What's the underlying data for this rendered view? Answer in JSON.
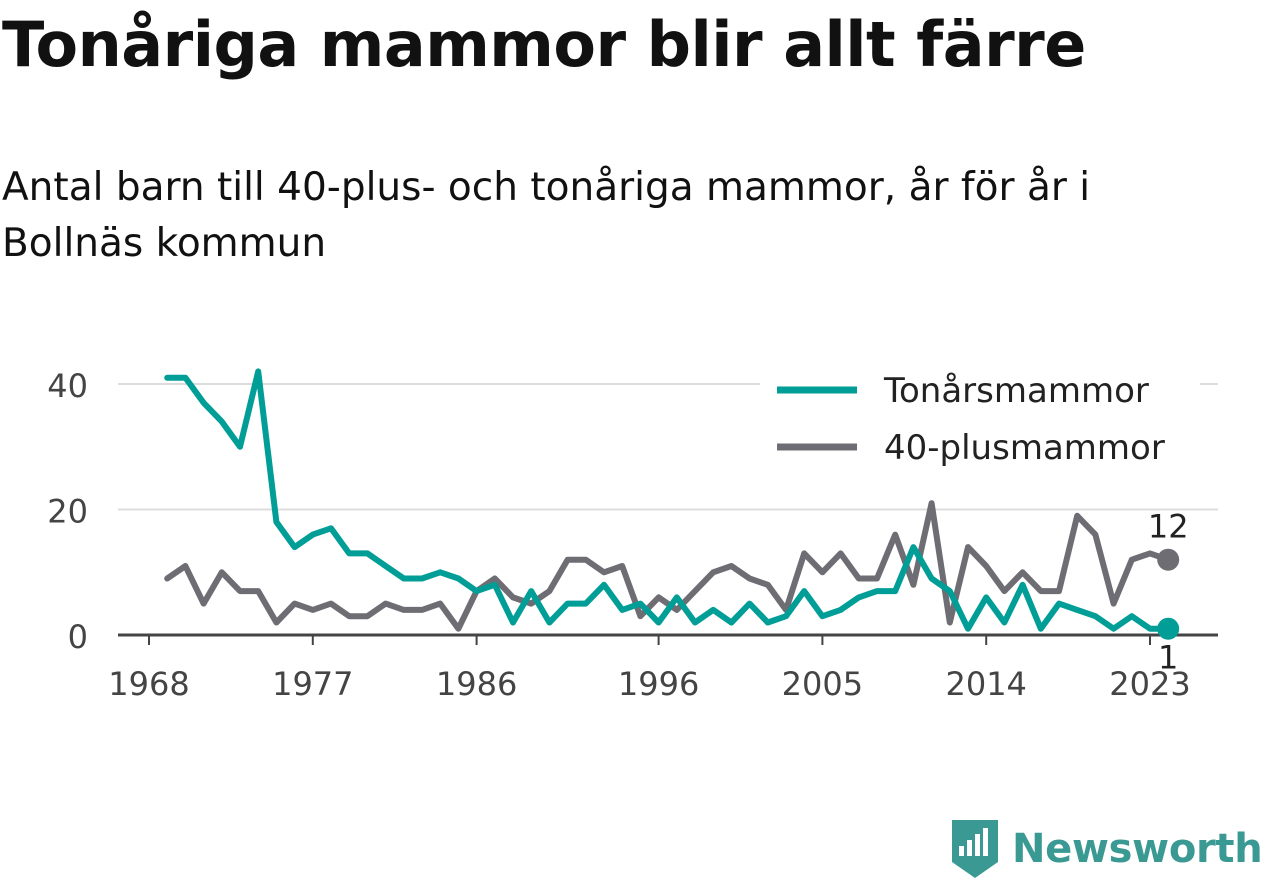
{
  "title": "Tonåriga mammor blir allt färre",
  "subtitle": "Antal barn till 40-plus- och tonåriga mammor, år för år i Bollnäs kommun",
  "brand": "Newsworthy",
  "chart_data": {
    "type": "line",
    "xlabel": "",
    "ylabel": "",
    "ylim": [
      0,
      42
    ],
    "xlim": [
      1968,
      2024
    ],
    "yticks": [
      0,
      20,
      40
    ],
    "xticks": [
      1968,
      1977,
      1986,
      1996,
      2005,
      2014,
      2023
    ],
    "grid": true,
    "legend": "top-right",
    "x": [
      1969,
      1970,
      1971,
      1972,
      1973,
      1974,
      1975,
      1976,
      1977,
      1978,
      1979,
      1980,
      1981,
      1982,
      1983,
      1984,
      1985,
      1986,
      1987,
      1988,
      1989,
      1990,
      1991,
      1992,
      1993,
      1994,
      1995,
      1996,
      1997,
      1998,
      1999,
      2000,
      2001,
      2002,
      2003,
      2004,
      2005,
      2006,
      2007,
      2008,
      2009,
      2010,
      2011,
      2012,
      2013,
      2014,
      2015,
      2016,
      2017,
      2018,
      2019,
      2020,
      2021,
      2022,
      2023,
      2024
    ],
    "series": [
      {
        "name": "Tonårsmammor",
        "color": "#009e96",
        "values": [
          41,
          41,
          37,
          34,
          30,
          42,
          18,
          14,
          16,
          17,
          13,
          13,
          11,
          9,
          9,
          10,
          9,
          7,
          8,
          2,
          7,
          2,
          5,
          5,
          8,
          4,
          5,
          2,
          6,
          2,
          4,
          2,
          5,
          2,
          3,
          7,
          3,
          4,
          6,
          7,
          7,
          14,
          9,
          7,
          1,
          6,
          2,
          8,
          1,
          5,
          4,
          3,
          1,
          3,
          1,
          1
        ],
        "end_label": "1"
      },
      {
        "name": "40-plusmammor",
        "color": "#6e6d73",
        "values": [
          9,
          11,
          5,
          10,
          7,
          7,
          2,
          5,
          4,
          5,
          3,
          3,
          5,
          4,
          4,
          5,
          1,
          7,
          9,
          6,
          5,
          7,
          12,
          12,
          10,
          11,
          3,
          6,
          4,
          7,
          10,
          11,
          9,
          8,
          4,
          13,
          10,
          13,
          9,
          9,
          16,
          8,
          21,
          2,
          14,
          11,
          7,
          10,
          7,
          7,
          19,
          16,
          5,
          12,
          13,
          12
        ],
        "end_label": "12"
      }
    ]
  }
}
